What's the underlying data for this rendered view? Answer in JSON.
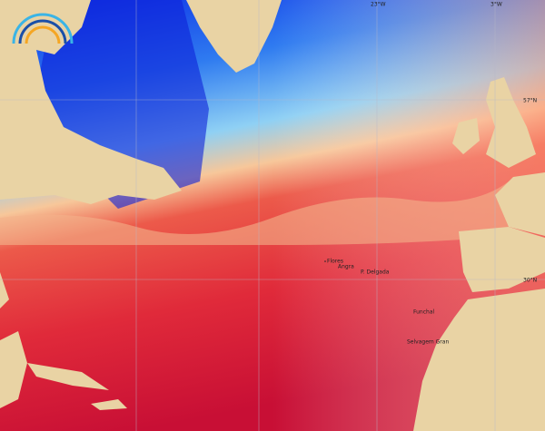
{
  "map": {
    "grid_labels": [
      "23°W",
      "3°W",
      "57°N",
      "30°N"
    ],
    "places": [
      "Flores",
      "Angra",
      "P. Delgada",
      "Funchal",
      "Selvagem Gran"
    ]
  }
}
